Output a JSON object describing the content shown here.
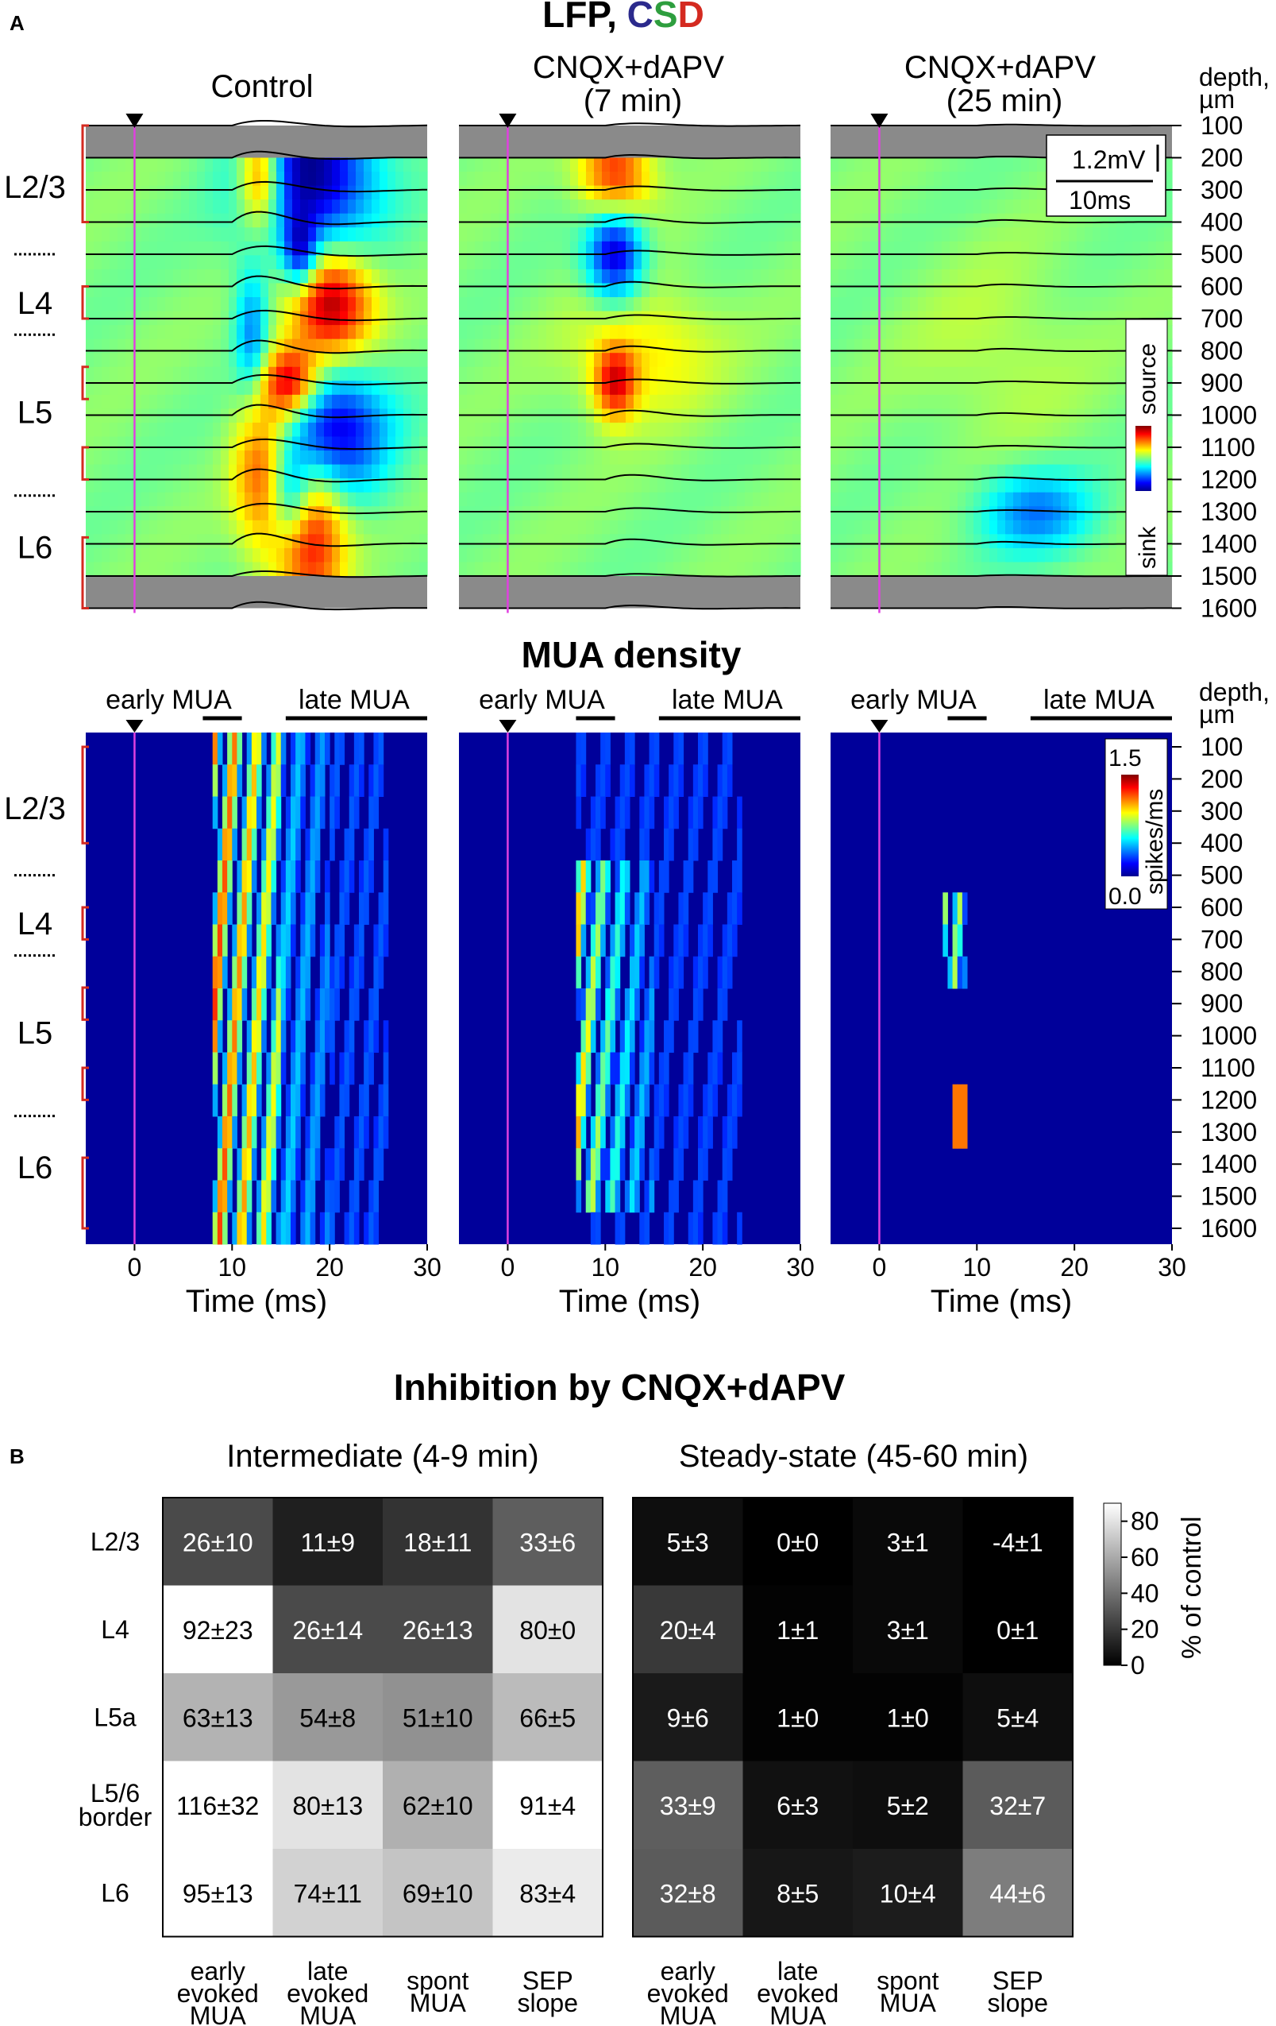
{
  "panel_labels": {
    "a": "A",
    "b": "B"
  },
  "lfp": {
    "title_parts": [
      {
        "text": "LFP, ",
        "color": "#000000"
      },
      {
        "text": "C",
        "color": "#2b2a8c"
      },
      {
        "text": "S",
        "color": "#2e9e3e"
      },
      {
        "text": "D",
        "color": "#d42a20"
      }
    ],
    "conditions": [
      "Control",
      "CNQX+dAPV\n(7 min)",
      "CNQX+dAPV\n(25 min)"
    ],
    "depth_label": "depth,\nµm",
    "depths": [
      "100",
      "200",
      "300",
      "400",
      "500",
      "600",
      "700",
      "800",
      "900",
      "1000",
      "1100",
      "1200",
      "1300",
      "1400",
      "1500",
      "1600"
    ],
    "layers": [
      "L2/3",
      "L4",
      "L5",
      "L6"
    ],
    "scale_bar": {
      "voltage": "1.2mV",
      "time": "10ms"
    },
    "colorbar": {
      "top": "source",
      "bottom": "sink"
    }
  },
  "mua": {
    "title": "MUA density",
    "window_labels": {
      "early": "early MUA",
      "late": "late MUA"
    },
    "depth_label": "depth,\nµm",
    "colorbar": {
      "max": "1.5",
      "min": "0.0",
      "unit": "spikes/ms"
    },
    "x_ticks": [
      "0",
      "10",
      "20",
      "30"
    ],
    "x_label": "Time (ms)"
  },
  "chart_data": [
    {
      "type": "heatmap",
      "title": "LFP, CSD",
      "panels": [
        "Control",
        "CNQX+dAPV (7 min)",
        "CNQX+dAPV (25 min)"
      ],
      "xlabel": "Time (ms)",
      "ylabel": "depth, µm",
      "xlim": [
        -5,
        30
      ],
      "ylim": [
        100,
        1600
      ],
      "stimulus_time_ms": 0,
      "colorbar_labels": [
        "source",
        "sink"
      ]
    },
    {
      "type": "heatmap",
      "title": "MUA density",
      "panels": [
        "Control",
        "CNQX+dAPV (7 min)",
        "CNQX+dAPV (25 min)"
      ],
      "xlabel": "Time (ms)",
      "ylabel": "depth, µm",
      "xticks": [
        0,
        10,
        20,
        30
      ],
      "xlim": [
        -5,
        30
      ],
      "ylim": [
        100,
        1600
      ],
      "colorbar_range": [
        0.0,
        1.5
      ],
      "colorbar_unit": "spikes/ms"
    },
    {
      "type": "heatmap",
      "title": "Inhibition by CNQX+dAPV",
      "colorbar_label": "% of control",
      "colorbar_ticks": [
        0,
        20,
        40,
        60,
        80
      ],
      "rows": [
        "L2/3",
        "L4",
        "L5a",
        "L5/6\nborder",
        "L6"
      ],
      "columns": [
        "early\nevoked\nMUA",
        "late\nevoked\nMUA",
        "spont\nMUA",
        "SEP\nslope"
      ],
      "groups": [
        {
          "name": "Intermediate (4-9 min)",
          "cells": [
            [
              "26±10",
              "11±9",
              "18±11",
              "33±6"
            ],
            [
              "92±23",
              "26±14",
              "26±13",
              "80±0"
            ],
            [
              "63±13",
              "54±8",
              "51±10",
              "66±5"
            ],
            [
              "116±32",
              "80±13",
              "62±10",
              "91±4"
            ],
            [
              "95±13",
              "74±11",
              "69±10",
              "83±4"
            ]
          ]
        },
        {
          "name": "Steady-state (45-60 min)",
          "cells": [
            [
              "5±3",
              "0±0",
              "3±1",
              "-4±1"
            ],
            [
              "20±4",
              "1±1",
              "3±1",
              "0±1"
            ],
            [
              "9±6",
              "1±0",
              "1±0",
              "5±4"
            ],
            [
              "33±9",
              "6±3",
              "5±2",
              "32±7"
            ],
            [
              "32±8",
              "8±5",
              "10±4",
              "44±6"
            ]
          ]
        }
      ]
    }
  ]
}
